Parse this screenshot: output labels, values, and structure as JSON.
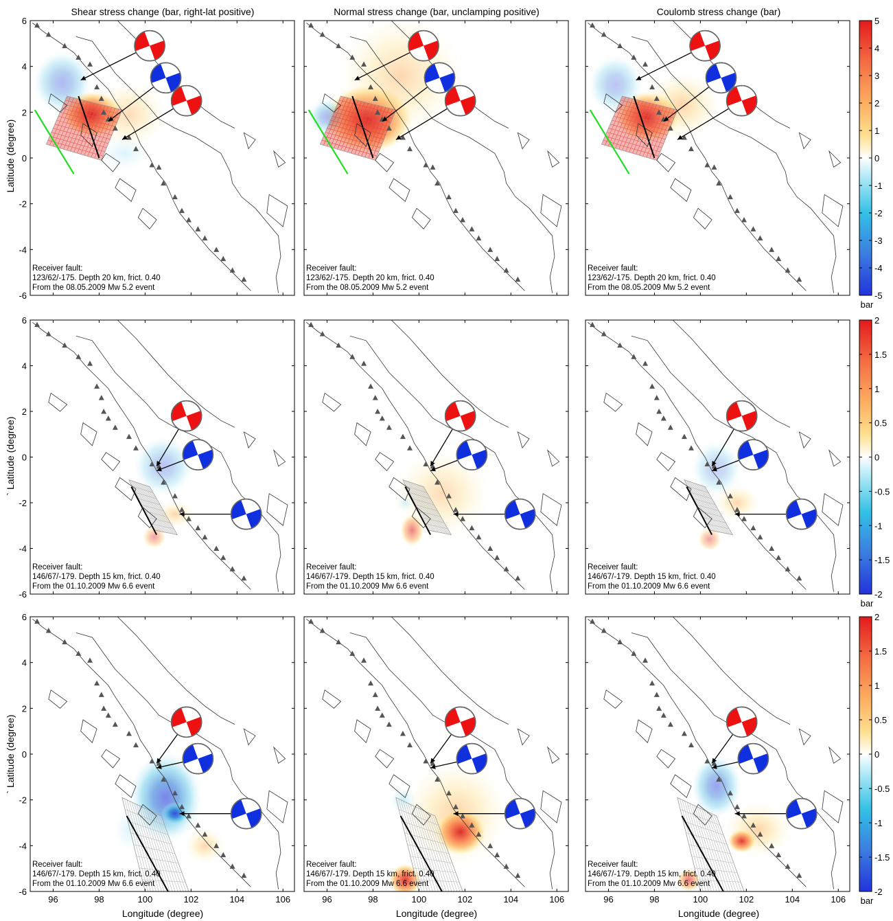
{
  "figure": {
    "column_titles": [
      "Shear stress change (bar, right-lat positive)",
      "Normal stress change (bar, unclamping positive)",
      "Coulomb stress change (bar)"
    ],
    "xlabel": "Longitude (degree)",
    "ylabel": "Latitude (degree)",
    "row_ylabels": [
      "Latitude (degree)",
      "` Latitude (degree)",
      "` Latitude (degree)"
    ],
    "colorbar_unit": "bar"
  },
  "colors": {
    "positive": "#e31a1c",
    "negative": "#1f3fd8",
    "zero": "#ffffff",
    "focal_red": "#ee1111",
    "focal_blue": "#1030e0",
    "fault_green": "#22dd22",
    "volcano": "#555555"
  },
  "chart_data": [
    {
      "type": "heatmap",
      "row": 1,
      "xlim": [
        95,
        106.5
      ],
      "ylim": [
        -6,
        6
      ],
      "xticks": [
        96,
        98,
        100,
        102,
        104,
        106
      ],
      "yticks": [
        -6,
        -4,
        -2,
        0,
        2,
        4,
        6
      ],
      "colorbar": {
        "range": [
          -5,
          5
        ],
        "ticks": [
          "5",
          "4",
          "3",
          "2",
          "1",
          "0",
          "-1",
          "-2",
          "-3",
          "-4",
          "-5"
        ]
      },
      "annotation": [
        "Receiver fault:",
        "123/62/-175. Depth 20 km, frict. 0.40",
        "From the 08.05.2009 Mw 5.2 event"
      ],
      "panels": [
        "shear",
        "normal",
        "coulomb"
      ],
      "focal_mechanisms": [
        "red",
        "blue",
        "red"
      ]
    },
    {
      "type": "heatmap",
      "row": 2,
      "xlim": [
        95,
        106.5
      ],
      "ylim": [
        -6,
        6
      ],
      "xticks": [
        96,
        98,
        100,
        102,
        104,
        106
      ],
      "yticks": [
        -6,
        -4,
        -2,
        0,
        2,
        4,
        6
      ],
      "colorbar": {
        "range": [
          -2,
          2
        ],
        "ticks": [
          "2",
          "1.5",
          "1",
          "0.5",
          "0",
          "-0.5",
          "-1",
          "-1.5",
          "-2"
        ]
      },
      "annotation": [
        "Receiver fault:",
        "146/67/-179. Depth 15 km, frict. 0.40",
        "From the 01.10.2009 Mw 6.6 event"
      ],
      "panels": [
        "shear",
        "normal",
        "coulomb"
      ],
      "focal_mechanisms": [
        "red",
        "blue",
        "blue"
      ]
    },
    {
      "type": "heatmap",
      "row": 3,
      "xlim": [
        95,
        106.5
      ],
      "ylim": [
        -6,
        6
      ],
      "xticks": [
        96,
        98,
        100,
        102,
        104,
        106
      ],
      "yticks": [
        -6,
        -4,
        -2,
        0,
        2,
        4,
        6
      ],
      "colorbar": {
        "range": [
          -2,
          2
        ],
        "ticks": [
          "2",
          "1.5",
          "1",
          "0.5",
          "0",
          "-0.5",
          "-1",
          "-1.5",
          "-2"
        ]
      },
      "annotation": [
        "Receiver fault:",
        "146/67/-179. Depth 15 km, frict. 0.40",
        "From the 01.10.2009 Mw 6.6 event"
      ],
      "panels": [
        "shear",
        "normal",
        "coulomb"
      ],
      "focal_mechanisms": [
        "red",
        "blue",
        "blue"
      ]
    }
  ]
}
